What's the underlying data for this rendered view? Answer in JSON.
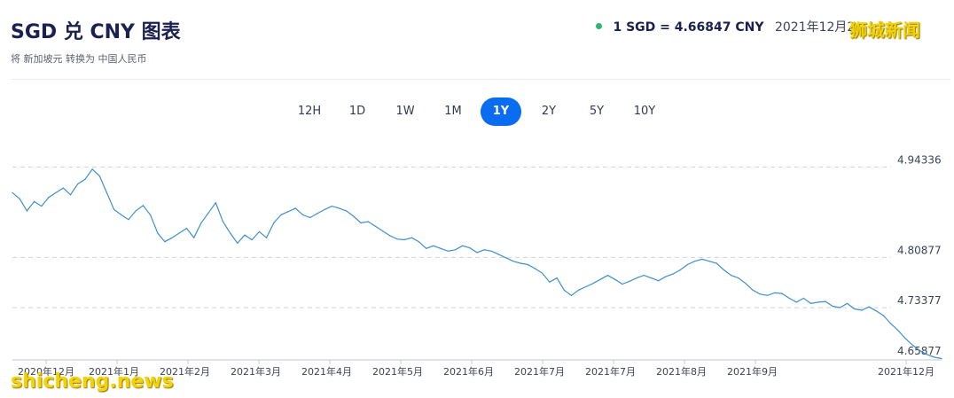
{
  "header": {
    "title": "SGD 兑 CNY 图表",
    "subtitle": "将 新加坡元 转换为 中国人民币",
    "rate_text": "1 SGD = 4.66847 CNY",
    "timestamp": "2021年12月2",
    "watermark_top": "狮城新闻",
    "watermark_bottom": "shicheng.news",
    "status_color": "#2bb673"
  },
  "range_tabs": [
    {
      "label": "12H",
      "active": false
    },
    {
      "label": "1D",
      "active": false
    },
    {
      "label": "1W",
      "active": false
    },
    {
      "label": "1M",
      "active": false
    },
    {
      "label": "1Y",
      "active": true
    },
    {
      "label": "2Y",
      "active": false
    },
    {
      "label": "5Y",
      "active": false
    },
    {
      "label": "10Y",
      "active": false
    }
  ],
  "chart_data": {
    "type": "line",
    "title": "",
    "xlabel": "",
    "ylabel": "",
    "ylim": [
      4.6587,
      4.965
    ],
    "yticks": [
      4.94336,
      4.80877,
      4.73377,
      4.65877
    ],
    "ytick_labels": [
      "4.94336",
      "4.80877",
      "4.73377",
      "4.65877"
    ],
    "xtick_labels": [
      "2020年12月",
      "2021年1月",
      "2021年2月",
      "2021年3月",
      "2021年4月",
      "2021年5月",
      "2021年6月",
      "2021年7月",
      "2021年7月",
      "2021年8月",
      "2021年9月",
      "2021年12月"
    ],
    "grid": true,
    "line_color": "#3f8fce",
    "series": [
      {
        "values": [
          4.905,
          4.896,
          4.878,
          4.892,
          4.885,
          4.898,
          4.905,
          4.912,
          4.902,
          4.918,
          4.925,
          4.94,
          4.93,
          4.905,
          4.88,
          4.872,
          4.865,
          4.878,
          4.886,
          4.872,
          4.845,
          4.832,
          4.838,
          4.845,
          4.852,
          4.838,
          4.86,
          4.875,
          4.89,
          4.862,
          4.845,
          4.83,
          4.842,
          4.835,
          4.847,
          4.838,
          4.86,
          4.872,
          4.877,
          4.882,
          4.872,
          4.868,
          4.874,
          4.88,
          4.885,
          4.882,
          4.878,
          4.87,
          4.86,
          4.862,
          4.855,
          4.848,
          4.841,
          4.836,
          4.835,
          4.838,
          4.832,
          4.822,
          4.826,
          4.822,
          4.818,
          4.82,
          4.826,
          4.823,
          4.816,
          4.82,
          4.818,
          4.813,
          4.808,
          4.803,
          4.8,
          4.798,
          4.792,
          4.785,
          4.772,
          4.778,
          4.76,
          4.752,
          4.76,
          4.765,
          4.77,
          4.776,
          4.782,
          4.776,
          4.769,
          4.773,
          4.778,
          4.782,
          4.778,
          4.774,
          4.78,
          4.784,
          4.79,
          4.798,
          4.803,
          4.806,
          4.803,
          4.8,
          4.79,
          4.782,
          4.778,
          4.77,
          4.76,
          4.754,
          4.752,
          4.756,
          4.755,
          4.748,
          4.742,
          4.748,
          4.74,
          4.742,
          4.743,
          4.736,
          4.734,
          4.74,
          4.732,
          4.73,
          4.735,
          4.729,
          4.722,
          4.71,
          4.7,
          4.688,
          4.678,
          4.67,
          4.664,
          4.66,
          4.658
        ]
      }
    ]
  }
}
